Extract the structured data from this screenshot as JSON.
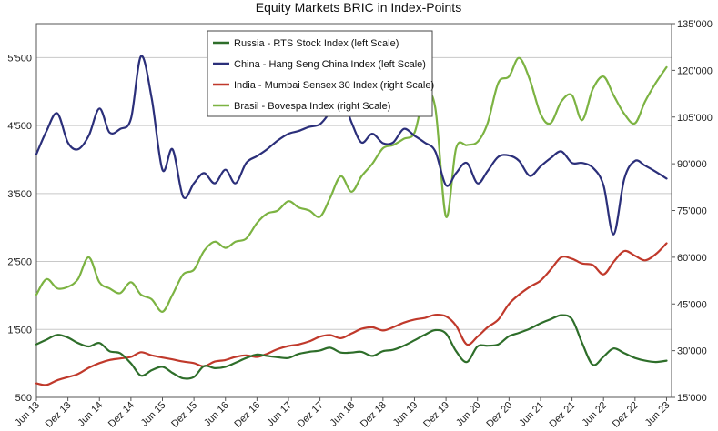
{
  "chart_data": {
    "type": "line",
    "title": "Equity Markets BRIC in Index-Points",
    "xlabel": "",
    "ylabel_left": "",
    "ylabel_right": "",
    "x_range": [
      2013.42,
      2023.5
    ],
    "x_ticks": [
      {
        "x": 2013.42,
        "label": "Jun 13"
      },
      {
        "x": 2013.92,
        "label": "Dez 13"
      },
      {
        "x": 2014.42,
        "label": "Jun 14"
      },
      {
        "x": 2014.92,
        "label": "Dez 14"
      },
      {
        "x": 2015.42,
        "label": "Jun 15"
      },
      {
        "x": 2015.92,
        "label": "Dez 15"
      },
      {
        "x": 2016.42,
        "label": "Jun 16"
      },
      {
        "x": 2016.92,
        "label": "Dez 16"
      },
      {
        "x": 2017.42,
        "label": "Jun 17"
      },
      {
        "x": 2017.92,
        "label": "Dez 17"
      },
      {
        "x": 2018.42,
        "label": "Jun 18"
      },
      {
        "x": 2018.92,
        "label": "Dez 18"
      },
      {
        "x": 2019.42,
        "label": "Jun 19"
      },
      {
        "x": 2019.92,
        "label": "Dez 19"
      },
      {
        "x": 2020.42,
        "label": "Jun 20"
      },
      {
        "x": 2020.92,
        "label": "Dez 20"
      },
      {
        "x": 2021.42,
        "label": "Jun 21"
      },
      {
        "x": 2021.92,
        "label": "Dez 21"
      },
      {
        "x": 2022.42,
        "label": "Jun 22"
      },
      {
        "x": 2022.92,
        "label": "Dez 22"
      },
      {
        "x": 2023.42,
        "label": "Jun 23"
      }
    ],
    "y_left": {
      "range": [
        500,
        6000
      ],
      "ticks": [
        500,
        1500,
        2500,
        3500,
        4500,
        5500
      ],
      "tick_labels": [
        "500",
        "1'500",
        "2'500",
        "3'500",
        "4'500",
        "5'500"
      ]
    },
    "y_right": {
      "range": [
        15000,
        135000
      ],
      "ticks": [
        15000,
        30000,
        45000,
        60000,
        75000,
        90000,
        105000,
        120000,
        135000
      ],
      "tick_labels": [
        "15'000",
        "30'000",
        "45'000",
        "60'000",
        "75'000",
        "90'000",
        "105'000",
        "120'000",
        "135'000"
      ]
    },
    "grid": true,
    "legend_position": "top-center",
    "series": [
      {
        "name": "Russia - RTS Stock Index (left Scale)",
        "axis": "left",
        "color": "#2e6e2a",
        "x": [
          2013.42,
          2013.58,
          2013.75,
          2013.92,
          2014.08,
          2014.25,
          2014.42,
          2014.58,
          2014.75,
          2014.92,
          2015.08,
          2015.25,
          2015.42,
          2015.58,
          2015.75,
          2015.92,
          2016.08,
          2016.25,
          2016.42,
          2016.58,
          2016.75,
          2016.92,
          2017.08,
          2017.25,
          2017.42,
          2017.58,
          2017.75,
          2017.92,
          2018.08,
          2018.25,
          2018.42,
          2018.58,
          2018.75,
          2018.92,
          2019.08,
          2019.25,
          2019.42,
          2019.58,
          2019.75,
          2019.92,
          2020.08,
          2020.25,
          2020.42,
          2020.58,
          2020.75,
          2020.92,
          2021.08,
          2021.25,
          2021.42,
          2021.58,
          2021.75,
          2021.92,
          2022.08,
          2022.25,
          2022.42,
          2022.58,
          2022.75,
          2022.92,
          2023.08,
          2023.25,
          2023.42
        ],
        "y": [
          1280,
          1350,
          1420,
          1380,
          1300,
          1250,
          1300,
          1180,
          1150,
          1000,
          820,
          900,
          950,
          860,
          780,
          800,
          960,
          930,
          950,
          1010,
          1080,
          1130,
          1110,
          1090,
          1080,
          1140,
          1170,
          1190,
          1230,
          1160,
          1160,
          1170,
          1110,
          1180,
          1200,
          1260,
          1340,
          1420,
          1490,
          1440,
          1180,
          1020,
          1250,
          1260,
          1280,
          1400,
          1450,
          1510,
          1590,
          1650,
          1710,
          1650,
          1300,
          980,
          1100,
          1220,
          1150,
          1080,
          1040,
          1020,
          1040
        ]
      },
      {
        "name": "China - Hang Seng China Index (left Scale)",
        "axis": "left",
        "color": "#2b2f7a",
        "x": [
          2013.42,
          2013.58,
          2013.75,
          2013.92,
          2014.08,
          2014.25,
          2014.42,
          2014.58,
          2014.75,
          2014.92,
          2015.08,
          2015.25,
          2015.42,
          2015.58,
          2015.75,
          2015.92,
          2016.08,
          2016.25,
          2016.42,
          2016.58,
          2016.75,
          2016.92,
          2017.08,
          2017.25,
          2017.42,
          2017.58,
          2017.75,
          2017.92,
          2018.08,
          2018.25,
          2018.42,
          2018.58,
          2018.75,
          2018.92,
          2019.08,
          2019.25,
          2019.42,
          2019.58,
          2019.75,
          2019.92,
          2020.08,
          2020.25,
          2020.42,
          2020.58,
          2020.75,
          2020.92,
          2021.08,
          2021.25,
          2021.42,
          2021.58,
          2021.75,
          2021.92,
          2022.08,
          2022.25,
          2022.42,
          2022.58,
          2022.75,
          2022.92,
          2023.08,
          2023.25,
          2023.42
        ],
        "y": [
          4080,
          4420,
          4680,
          4250,
          4150,
          4350,
          4750,
          4400,
          4450,
          4600,
          5520,
          4900,
          3850,
          4150,
          3450,
          3650,
          3800,
          3650,
          3850,
          3650,
          3950,
          4050,
          4150,
          4280,
          4380,
          4420,
          4480,
          4520,
          4700,
          4950,
          4550,
          4250,
          4380,
          4240,
          4250,
          4450,
          4350,
          4250,
          4120,
          3620,
          3800,
          3950,
          3650,
          3830,
          4040,
          4060,
          3980,
          3760,
          3900,
          4020,
          4120,
          3950,
          3950,
          3880,
          3620,
          2900,
          3720,
          3980,
          3910,
          3820,
          3720
        ]
      },
      {
        "name": "India - Mumbai Sensex 30 Index (right Scale)",
        "axis": "right",
        "color": "#c0392b",
        "x": [
          2013.42,
          2013.58,
          2013.75,
          2013.92,
          2014.08,
          2014.25,
          2014.42,
          2014.58,
          2014.75,
          2014.92,
          2015.08,
          2015.25,
          2015.42,
          2015.58,
          2015.75,
          2015.92,
          2016.08,
          2016.25,
          2016.42,
          2016.58,
          2016.75,
          2016.92,
          2017.08,
          2017.25,
          2017.42,
          2017.58,
          2017.75,
          2017.92,
          2018.08,
          2018.25,
          2018.42,
          2018.58,
          2018.75,
          2018.92,
          2019.08,
          2019.25,
          2019.42,
          2019.58,
          2019.75,
          2019.92,
          2020.08,
          2020.25,
          2020.42,
          2020.58,
          2020.75,
          2020.92,
          2021.08,
          2021.25,
          2021.42,
          2021.58,
          2021.75,
          2021.92,
          2022.08,
          2022.25,
          2022.42,
          2022.58,
          2022.75,
          2022.92,
          2023.08,
          2023.25,
          2023.42
        ],
        "y": [
          19500,
          19000,
          20500,
          21500,
          22500,
          24500,
          26000,
          27000,
          27500,
          28000,
          29500,
          28500,
          27800,
          27200,
          26500,
          26000,
          25000,
          26500,
          27000,
          28000,
          28500,
          28000,
          29000,
          30500,
          31500,
          32000,
          33000,
          34500,
          35000,
          34000,
          35500,
          37000,
          37500,
          36500,
          37500,
          39000,
          40000,
          40500,
          41500,
          41000,
          38000,
          32000,
          34500,
          37500,
          40000,
          45000,
          48000,
          50500,
          52500,
          56000,
          60000,
          59500,
          58000,
          57500,
          54500,
          58500,
          62000,
          60500,
          59000,
          61000,
          64500
        ]
      },
      {
        "name": "Brasil - Bovespa Index (right Scale)",
        "axis": "right",
        "color": "#7cb342",
        "x": [
          2013.42,
          2013.58,
          2013.75,
          2013.92,
          2014.08,
          2014.25,
          2014.42,
          2014.58,
          2014.75,
          2014.92,
          2015.08,
          2015.25,
          2015.42,
          2015.58,
          2015.75,
          2015.92,
          2016.08,
          2016.25,
          2016.42,
          2016.58,
          2016.75,
          2016.92,
          2017.08,
          2017.25,
          2017.42,
          2017.58,
          2017.75,
          2017.92,
          2018.08,
          2018.25,
          2018.42,
          2018.58,
          2018.75,
          2018.92,
          2019.08,
          2019.25,
          2019.42,
          2019.58,
          2019.75,
          2019.92,
          2020.08,
          2020.25,
          2020.42,
          2020.58,
          2020.75,
          2020.92,
          2021.08,
          2021.25,
          2021.42,
          2021.58,
          2021.75,
          2021.92,
          2022.08,
          2022.25,
          2022.42,
          2022.58,
          2022.75,
          2022.92,
          2023.08,
          2023.25,
          2023.42
        ],
        "y": [
          48000,
          53000,
          50000,
          50500,
          53000,
          60000,
          52000,
          50000,
          48500,
          52000,
          48000,
          46500,
          42500,
          48000,
          54500,
          56000,
          62000,
          65000,
          63000,
          65000,
          66000,
          71000,
          74000,
          75000,
          78000,
          76000,
          75000,
          73000,
          79000,
          86000,
          81000,
          86000,
          90000,
          95000,
          96000,
          98000,
          100000,
          112000,
          108000,
          73000,
          95000,
          96000,
          97000,
          103000,
          116000,
          118000,
          124000,
          117000,
          106000,
          103000,
          110000,
          112000,
          104000,
          114000,
          118000,
          112000,
          106000,
          103000,
          110000,
          116000,
          121000
        ]
      }
    ]
  }
}
